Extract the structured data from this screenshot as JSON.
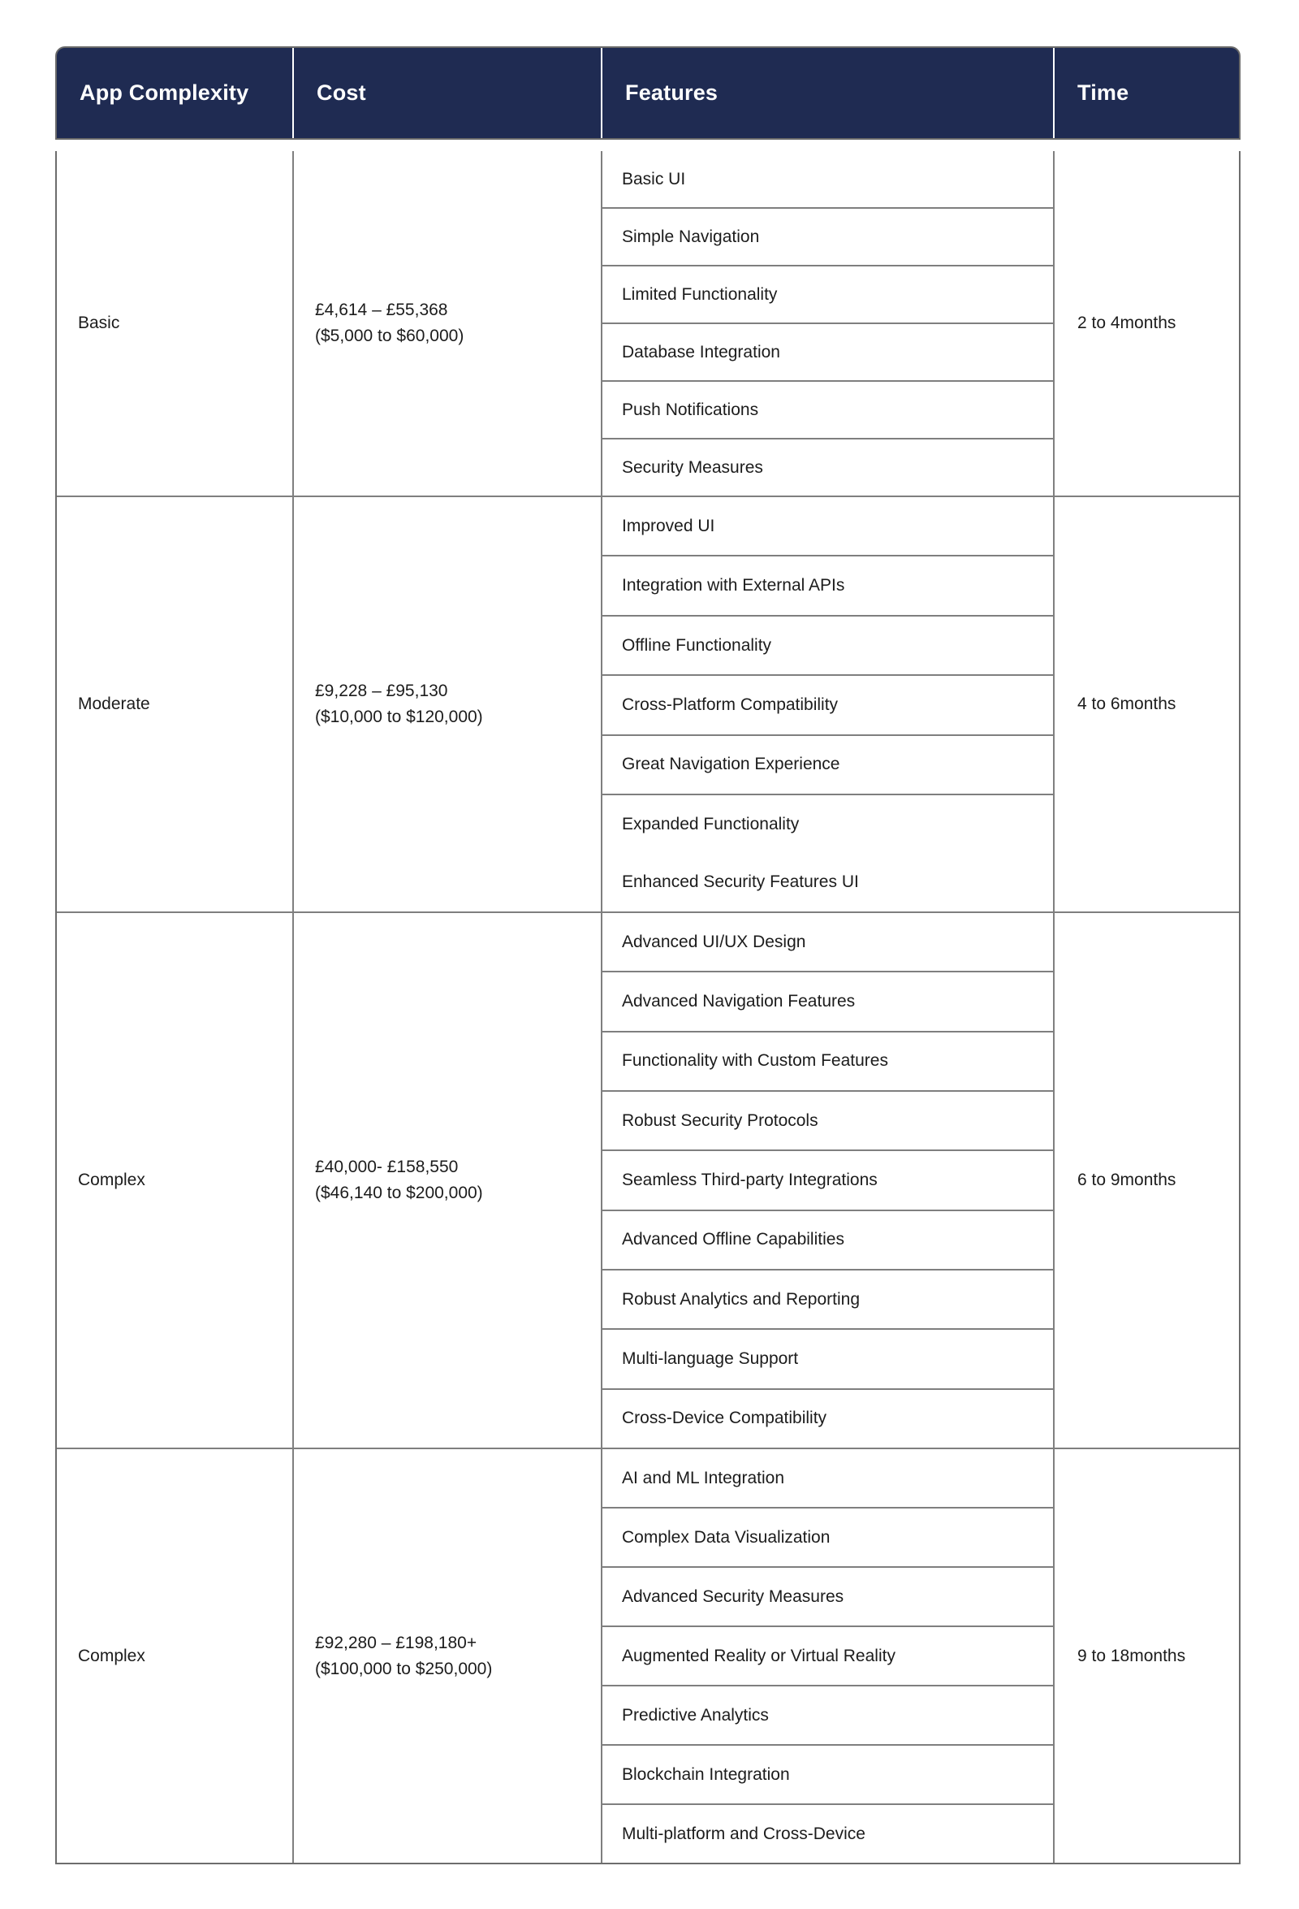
{
  "colors": {
    "header_bg": "#1f2b52",
    "header_text": "#ffffff",
    "body_text": "#1c1c1c",
    "border_inner": "#7f7f7f",
    "border_outer": "#6d6d6d"
  },
  "table": {
    "columns": [
      "App Complexity",
      "Cost",
      "Features",
      "Time"
    ],
    "rows": [
      {
        "complexity": "Basic",
        "cost_gbp": "£4,614 – £55,368",
        "cost_usd": "($5,000 to $60,000)",
        "features": [
          "Basic UI",
          "Simple Navigation",
          "Limited Functionality",
          "Database Integration",
          "Push Notifications",
          "Security Measures"
        ],
        "time": "2 to 4months"
      },
      {
        "complexity": "Moderate",
        "cost_gbp": "£9,228 – £95,130",
        "cost_usd": "($10,000 to $120,000)",
        "features": [
          "Improved UI",
          "Integration with External APIs",
          "Offline Functionality",
          "Cross-Platform Compatibility",
          "Great Navigation Experience",
          "Expanded Functionality",
          "Enhanced Security Features UI"
        ],
        "merged_last_feature": true,
        "time": "4 to 6months"
      },
      {
        "complexity": "Complex",
        "cost_gbp": "£40,000- £158,550",
        "cost_usd": "($46,140 to $200,000)",
        "features": [
          "Advanced UI/UX Design",
          "Advanced Navigation Features",
          "Functionality with Custom Features",
          "Robust Security Protocols",
          "Seamless Third-party Integrations",
          "Advanced Offline Capabilities",
          "Robust Analytics and Reporting",
          "Multi-language Support",
          "Cross-Device Compatibility"
        ],
        "time": "6 to 9months"
      },
      {
        "complexity": "Complex",
        "cost_gbp": "£92,280 – £198,180+",
        "cost_usd": "($100,000 to $250,000)",
        "features": [
          "AI and ML Integration",
          "Complex Data Visualization",
          "Advanced Security Measures",
          "Augmented Reality or Virtual Reality",
          "Predictive Analytics",
          "Blockchain Integration",
          "Multi-platform and Cross-Device"
        ],
        "time": "9 to 18months"
      }
    ]
  }
}
